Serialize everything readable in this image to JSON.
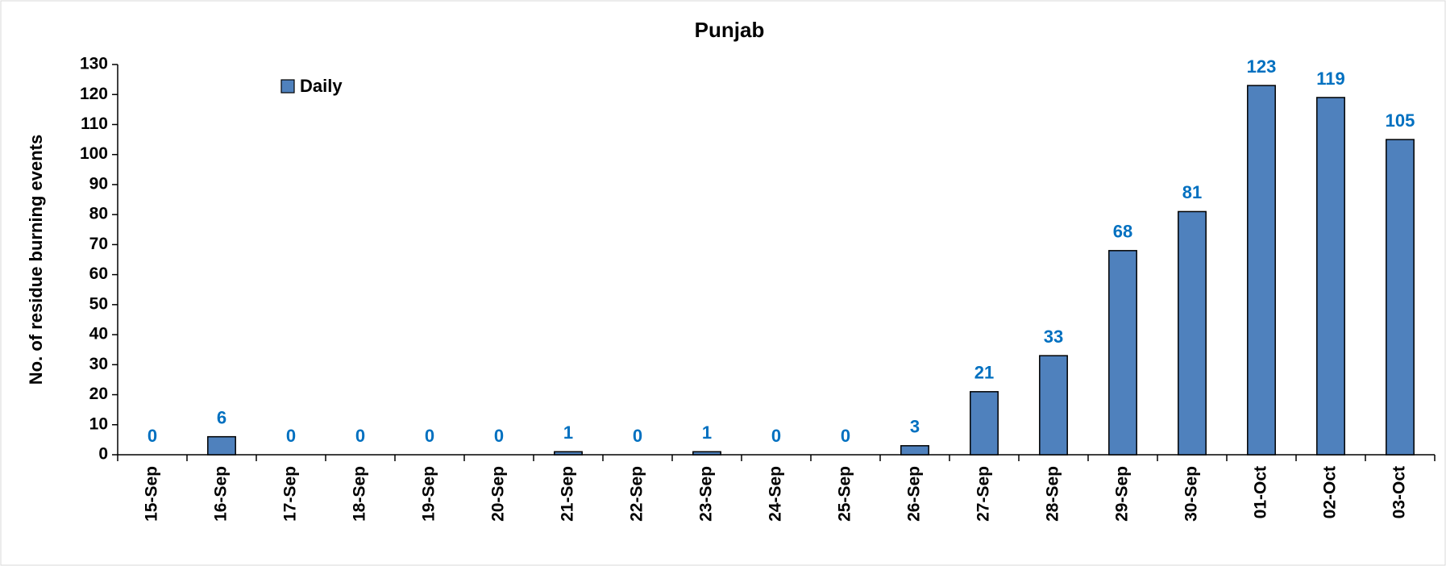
{
  "chart_data": {
    "type": "bar",
    "title": "Punjab",
    "ylabel": "No. of residue burning events",
    "categories": [
      "15-Sep",
      "16-Sep",
      "17-Sep",
      "18-Sep",
      "19-Sep",
      "20-Sep",
      "21-Sep",
      "22-Sep",
      "23-Sep",
      "24-Sep",
      "25-Sep",
      "26-Sep",
      "27-Sep",
      "28-Sep",
      "29-Sep",
      "30-Sep",
      "01-Oct",
      "02-Oct",
      "03-Oct"
    ],
    "series": [
      {
        "name": "Daily",
        "color": "#4f81bd",
        "values": [
          0,
          6,
          0,
          0,
          0,
          0,
          1,
          0,
          1,
          0,
          0,
          3,
          21,
          33,
          68,
          81,
          123,
          119,
          105
        ]
      }
    ],
    "ylim": [
      0,
      130
    ],
    "yticks": [
      0,
      10,
      20,
      30,
      40,
      50,
      60,
      70,
      80,
      90,
      100,
      110,
      120,
      130
    ],
    "grid": false,
    "legend": "upper left",
    "value_label_color": "#0070c0"
  }
}
